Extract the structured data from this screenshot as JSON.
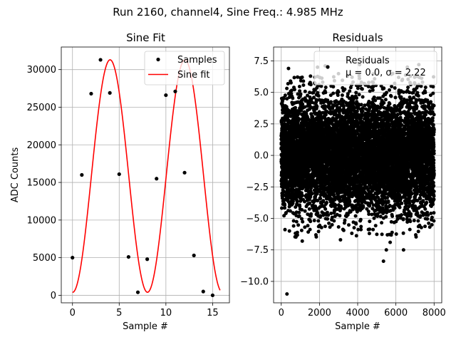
{
  "suptitle": "Run 2160, channel4, Sine Freq.: 4.985 MHz",
  "chart_data": [
    {
      "type": "scatter",
      "title": "Sine Fit",
      "xlabel": "Sample #",
      "ylabel": "ADC Counts",
      "xlim": [
        -1.2,
        16.8
      ],
      "ylim": [
        -1000,
        33000
      ],
      "xticks": [
        0,
        5,
        10,
        15
      ],
      "yticks": [
        0,
        5000,
        10000,
        15000,
        20000,
        25000,
        30000
      ],
      "grid": true,
      "legend": {
        "position": "top-right",
        "entries": [
          "Samples",
          "Sine fit"
        ]
      },
      "series": [
        {
          "name": "Samples",
          "style": "markers",
          "color": "#000000",
          "x": [
            0,
            1,
            2,
            3,
            4,
            5,
            6,
            7,
            8,
            9,
            10,
            11,
            12,
            13,
            14,
            15
          ],
          "y": [
            5000,
            16000,
            26800,
            31300,
            26900,
            16100,
            5100,
            400,
            4800,
            15500,
            26600,
            27100,
            16300,
            5300,
            500,
            0
          ]
        },
        {
          "name": "Sine fit",
          "style": "line",
          "color": "#ff0000",
          "fit": {
            "offset": 15850,
            "amplitude": 15450,
            "period": 8.01,
            "phase": -0.015,
            "x_range": [
              0,
              15.8
            ]
          }
        }
      ]
    },
    {
      "type": "scatter",
      "title": "Residuals",
      "xlabel": "Sample #",
      "ylabel": "",
      "xlim": [
        -400,
        8400
      ],
      "ylim": [
        -11.7,
        8.6
      ],
      "xticks": [
        0,
        2000,
        4000,
        6000,
        8000
      ],
      "yticks": [
        -10.0,
        -7.5,
        -5.0,
        -2.5,
        0.0,
        2.5,
        5.0,
        7.5
      ],
      "grid": true,
      "legend": {
        "position": "top-right",
        "entries": [
          "Residuals",
          "μ = 0.0, σ = 2.22"
        ]
      },
      "series": [
        {
          "name": "Residuals",
          "style": "markers",
          "color": "#000000",
          "n_points": 8000,
          "x_range": [
            0,
            8000
          ],
          "mean": 0.0,
          "std": 2.22,
          "outliers": [
            {
              "x": 300,
              "y": -11.0
            },
            {
              "x": 5350,
              "y": -8.4
            },
            {
              "x": 5500,
              "y": -7.5
            },
            {
              "x": 6400,
              "y": -7.5
            },
            {
              "x": 2300,
              "y": 7.1
            },
            {
              "x": 1900,
              "y": 7.0
            },
            {
              "x": 6600,
              "y": 7.0
            },
            {
              "x": 4100,
              "y": 7.2
            },
            {
              "x": 7200,
              "y": 7.2
            },
            {
              "x": 380,
              "y": 6.9
            },
            {
              "x": 5700,
              "y": -6.9
            },
            {
              "x": 1100,
              "y": -6.8
            },
            {
              "x": 3100,
              "y": -6.7
            }
          ]
        }
      ]
    }
  ]
}
